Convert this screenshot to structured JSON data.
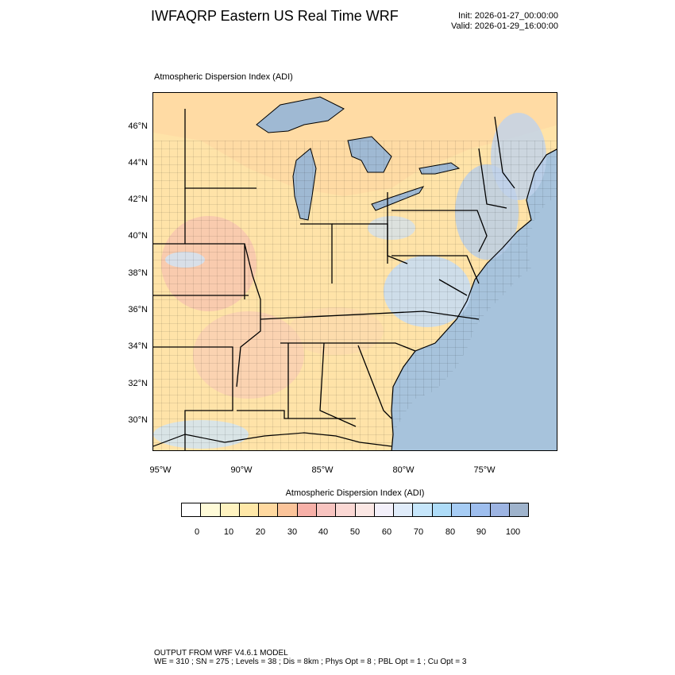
{
  "header": {
    "title": "IWFAQRP Eastern US Real Time WRF",
    "init": "Init: 2026-01-27_00:00:00",
    "valid": "Valid: 2026-01-29_16:00:00"
  },
  "plot": {
    "subtitle": "Atmospheric Dispersion Index   (ADI)"
  },
  "lat_labels": [
    "46°N",
    "44°N",
    "42°N",
    "40°N",
    "38°N",
    "36°N",
    "34°N",
    "32°N",
    "30°N"
  ],
  "lon_labels": [
    "95°W",
    "90°W",
    "85°W",
    "80°W",
    "75°W"
  ],
  "colorbar": {
    "title": "Atmospheric Dispersion Index  (ADI)",
    "labels": [
      "0",
      "10",
      "20",
      "30",
      "40",
      "50",
      "60",
      "70",
      "80",
      "90",
      "100"
    ],
    "colors": [
      "#ffffff",
      "#fffbd8",
      "#fff3c0",
      "#ffe8a8",
      "#ffd9a0",
      "#fbc49a",
      "#f7b0a8",
      "#f8c4c0",
      "#fbd8d4",
      "#fbe7e4",
      "#f3f0fa",
      "#e0ecfa",
      "#c6e6fb",
      "#aedcf8",
      "#a6ccf4",
      "#9ebeee",
      "#9db4e2",
      "#9fb3cc"
    ]
  },
  "map_colors": {
    "water": "#a7c3dc",
    "land_base": "#ffe3a8",
    "lakes": "#9fb9d3"
  },
  "footer": {
    "line1": "OUTPUT FROM WRF V4.6.1 MODEL",
    "line2": "WE = 310 ; SN = 275 ; Levels = 38 ; Dis = 8km ; Phys Opt = 8 ; PBL Opt = 1 ; Cu Opt = 3"
  }
}
